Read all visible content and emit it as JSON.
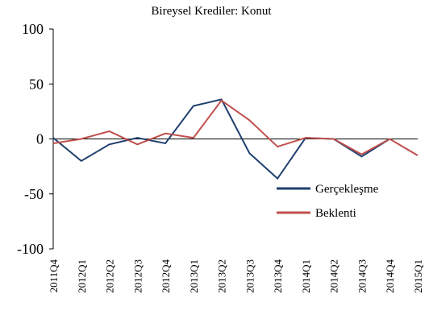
{
  "chart_data": {
    "type": "line",
    "title": "Bireysel Krediler: Konut",
    "categories": [
      "2011Q4",
      "2012Q1",
      "2012Q2",
      "2012Q3",
      "2012Q4",
      "2013Q1",
      "2013Q2",
      "2013Q3",
      "2013Q4",
      "2014Q1",
      "2014Q2",
      "2014Q3",
      "2014Q4",
      "2015Q1"
    ],
    "series": [
      {
        "name": "Gerçekleşme",
        "color": "#1f3f6e",
        "values": [
          1,
          -20,
          -5,
          1,
          -4,
          30,
          36,
          -13,
          -36,
          1,
          0,
          -16,
          0,
          null
        ]
      },
      {
        "name": "Beklenti",
        "color": "#c0504d",
        "values": [
          -4,
          0,
          7,
          -5,
          5,
          1,
          35,
          17,
          -7,
          1,
          0,
          -14,
          0,
          -15
        ]
      }
    ],
    "ylim": [
      -100,
      100
    ],
    "yticks": [
      -100,
      -50,
      0,
      50,
      100
    ],
    "legend": "lower right"
  }
}
